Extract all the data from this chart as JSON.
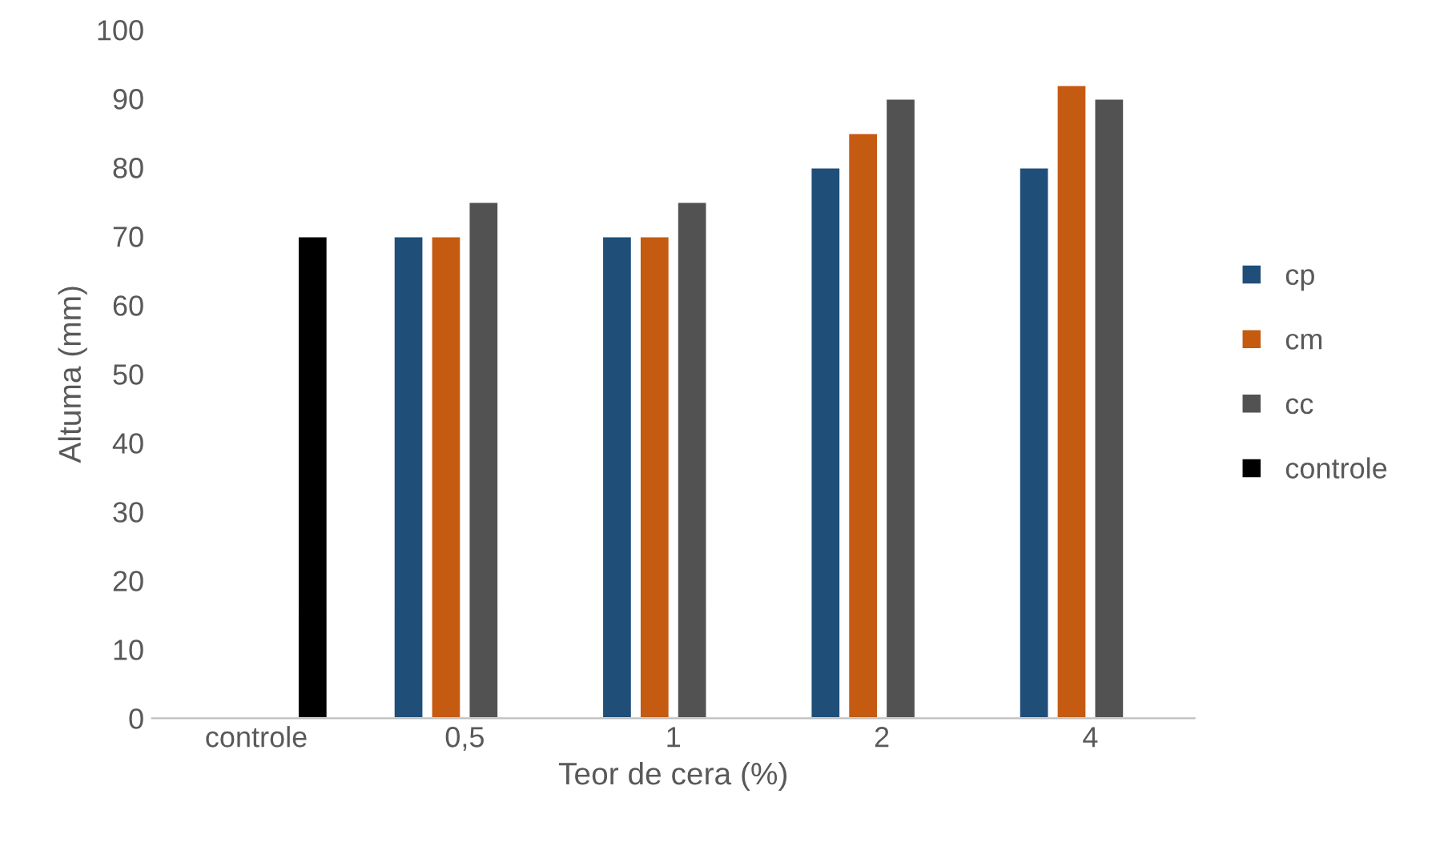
{
  "chart_data": {
    "type": "bar",
    "xlabel": "Teor de cera (%)",
    "ylabel": "Altuma (mm)",
    "categories": [
      "controle",
      "0,5",
      "1",
      "2",
      "4"
    ],
    "series": [
      {
        "name": "cp",
        "color": "#1f4e79",
        "values": [
          null,
          70,
          70,
          80,
          80
        ]
      },
      {
        "name": "cm",
        "color": "#c55a11",
        "values": [
          null,
          70,
          70,
          85,
          92
        ]
      },
      {
        "name": "cc",
        "color": "#525252",
        "values": [
          null,
          75,
          75,
          90,
          90
        ]
      },
      {
        "name": "controle",
        "color": "#000000",
        "values": [
          70,
          null,
          null,
          null,
          null
        ]
      }
    ],
    "ylim": [
      0,
      100
    ],
    "yticks": [
      0,
      10,
      20,
      30,
      40,
      50,
      60,
      70,
      80,
      90,
      100
    ],
    "grid": false,
    "legend": "right"
  }
}
